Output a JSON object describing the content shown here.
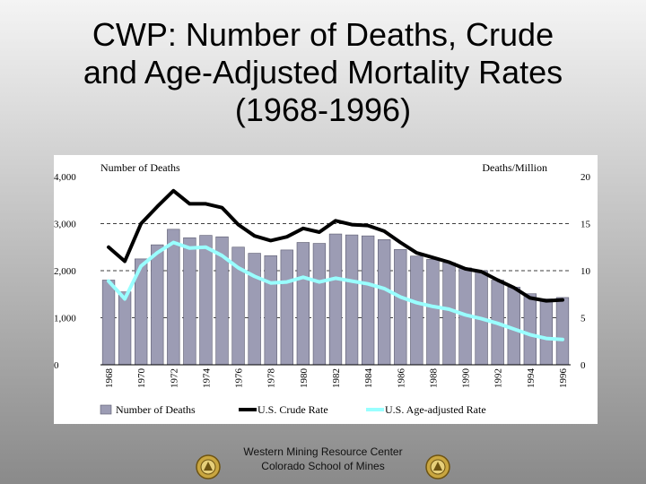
{
  "slide": {
    "title_lines": [
      "CWP:  Number of Deaths, Crude",
      "and Age-Adjusted Mortality Rates",
      "(1968-1996)"
    ],
    "footer_lines": [
      "Western Mining Resource Center",
      "Colorado School of Mines"
    ]
  },
  "colors": {
    "bar_fill": "#9c9cb4",
    "bar_stroke": "#5a5a6e",
    "crude_line": "#000000",
    "adjusted_line": "#99ffff",
    "gridline": "#000000"
  },
  "chart_data": {
    "type": "bar",
    "title": "",
    "left_axis_label": "Number of Deaths",
    "right_axis_label": "Deaths/Million",
    "left_ticks": [
      "4,000",
      "3,000",
      "2,000",
      "1,000",
      "0"
    ],
    "right_ticks": [
      "20",
      "15",
      "10",
      "5",
      "0"
    ],
    "ylim_left": [
      0,
      4000
    ],
    "ylim_right": [
      0,
      20
    ],
    "x_tick_labels": [
      "1968",
      "1970",
      "1972",
      "1974",
      "1976",
      "1978",
      "1980",
      "1982",
      "1984",
      "1986",
      "1988",
      "1990",
      "1992",
      "1994",
      "1996"
    ],
    "categories": [
      1968,
      1969,
      1970,
      1971,
      1972,
      1973,
      1974,
      1975,
      1976,
      1977,
      1978,
      1979,
      1980,
      1981,
      1982,
      1983,
      1984,
      1985,
      1986,
      1987,
      1988,
      1989,
      1990,
      1991,
      1992,
      1993,
      1994,
      1995,
      1996
    ],
    "grid": "horizontal dashed at 1,000 / 2,000 / 3,000",
    "legend_position": "bottom",
    "series": [
      {
        "name": "Number of Deaths",
        "kind": "bar",
        "axis": "left",
        "values": [
          1800,
          1550,
          2250,
          2550,
          2880,
          2700,
          2750,
          2720,
          2500,
          2370,
          2320,
          2440,
          2600,
          2580,
          2780,
          2760,
          2740,
          2660,
          2450,
          2310,
          2240,
          2170,
          2060,
          2000,
          1800,
          1650,
          1510,
          1400,
          1430
        ]
      },
      {
        "name": "U.S. Crude Rate",
        "kind": "line",
        "axis": "right",
        "values": [
          12.5,
          11.0,
          15.0,
          16.8,
          18.5,
          17.1,
          17.1,
          16.7,
          14.9,
          13.7,
          13.2,
          13.6,
          14.5,
          14.1,
          15.3,
          14.9,
          14.8,
          14.2,
          13.0,
          11.9,
          11.4,
          10.9,
          10.2,
          9.9,
          9.0,
          8.2,
          7.1,
          6.8,
          6.9
        ]
      },
      {
        "name": "U.S. Age-adjusted Rate",
        "kind": "line",
        "axis": "right",
        "values": [
          8.9,
          7.0,
          10.5,
          11.9,
          13.0,
          12.4,
          12.5,
          11.6,
          10.3,
          9.4,
          8.7,
          8.8,
          9.3,
          8.8,
          9.2,
          8.9,
          8.6,
          8.1,
          7.2,
          6.6,
          6.2,
          5.9,
          5.3,
          4.9,
          4.4,
          3.8,
          3.2,
          2.8,
          2.7
        ]
      }
    ]
  }
}
